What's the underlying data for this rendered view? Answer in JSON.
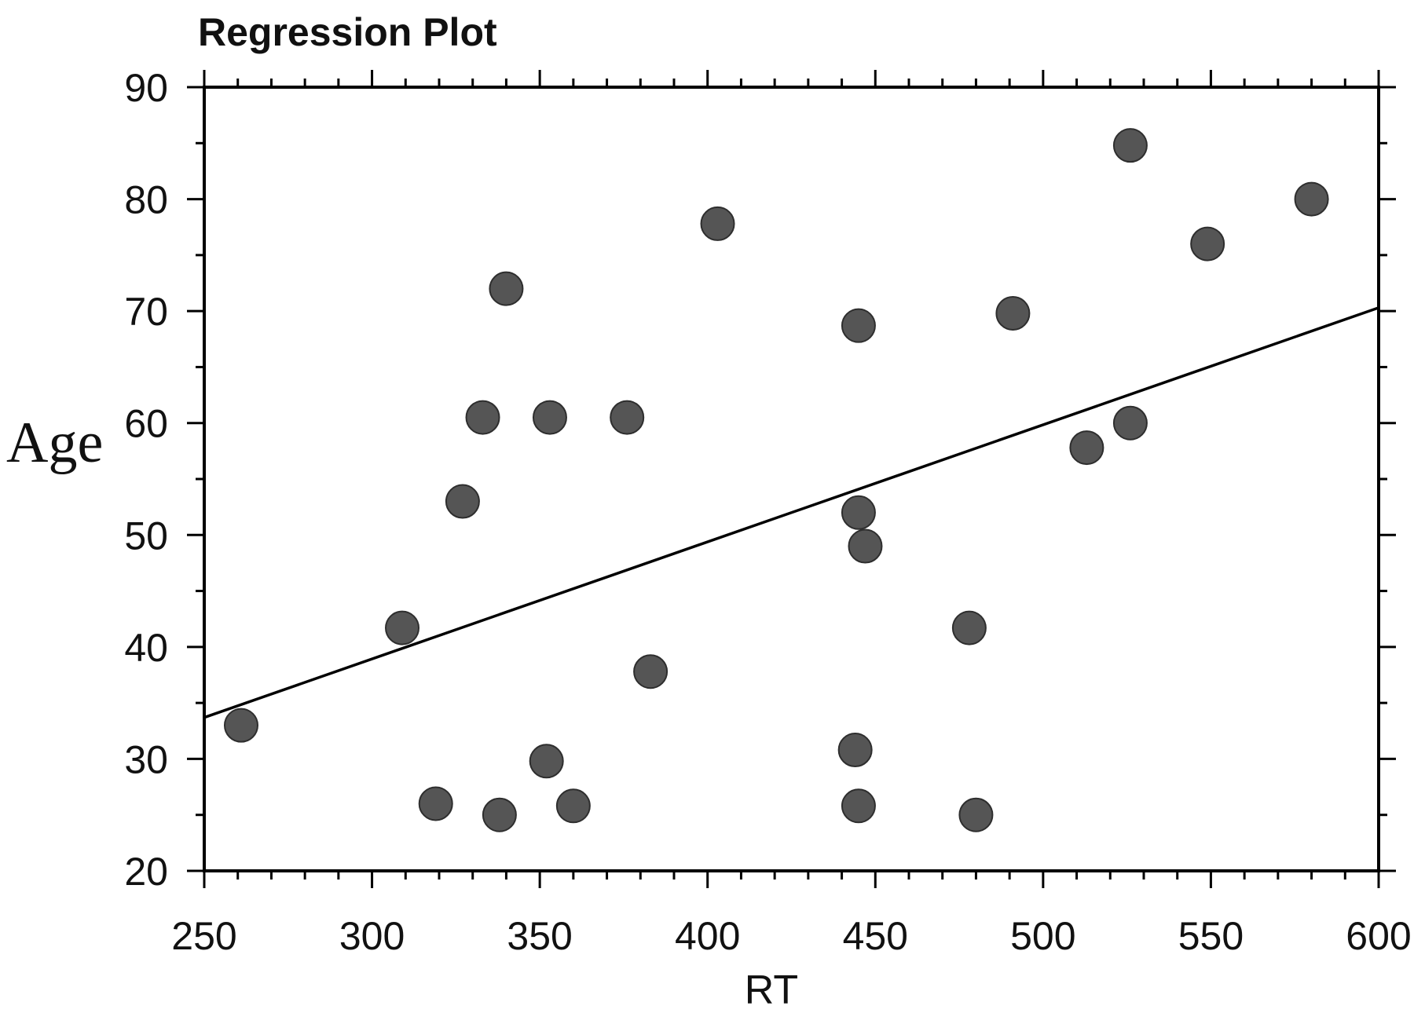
{
  "chart_data": {
    "type": "scatter",
    "title": "Regression Plot",
    "xlabel": "RT",
    "ylabel": "Age",
    "xlim": [
      250,
      600
    ],
    "ylim": [
      20,
      90
    ],
    "x_ticks": [
      250,
      300,
      350,
      400,
      450,
      500,
      550,
      600
    ],
    "y_ticks": [
      20,
      30,
      40,
      50,
      60,
      70,
      80,
      90
    ],
    "grid": false,
    "legend": "none",
    "point_color": "#555555",
    "line_color": "#000000",
    "points": [
      {
        "x": 261,
        "y": 33
      },
      {
        "x": 309,
        "y": 41.7
      },
      {
        "x": 319,
        "y": 26
      },
      {
        "x": 327,
        "y": 53
      },
      {
        "x": 333,
        "y": 60.5
      },
      {
        "x": 338,
        "y": 25
      },
      {
        "x": 340,
        "y": 72
      },
      {
        "x": 352,
        "y": 29.8
      },
      {
        "x": 353,
        "y": 60.5
      },
      {
        "x": 360,
        "y": 25.8
      },
      {
        "x": 376,
        "y": 60.5
      },
      {
        "x": 383,
        "y": 37.8
      },
      {
        "x": 403,
        "y": 77.8
      },
      {
        "x": 444,
        "y": 30.8
      },
      {
        "x": 445,
        "y": 25.8
      },
      {
        "x": 445,
        "y": 68.7
      },
      {
        "x": 445,
        "y": 52
      },
      {
        "x": 447,
        "y": 49
      },
      {
        "x": 478,
        "y": 41.7
      },
      {
        "x": 480,
        "y": 25
      },
      {
        "x": 491,
        "y": 69.8
      },
      {
        "x": 513,
        "y": 57.8
      },
      {
        "x": 526,
        "y": 84.8
      },
      {
        "x": 526,
        "y": 60
      },
      {
        "x": 549,
        "y": 76
      },
      {
        "x": 580,
        "y": 80
      }
    ],
    "regression_line": {
      "x": [
        250,
        600
      ],
      "y": [
        33.7,
        70.3
      ]
    }
  }
}
